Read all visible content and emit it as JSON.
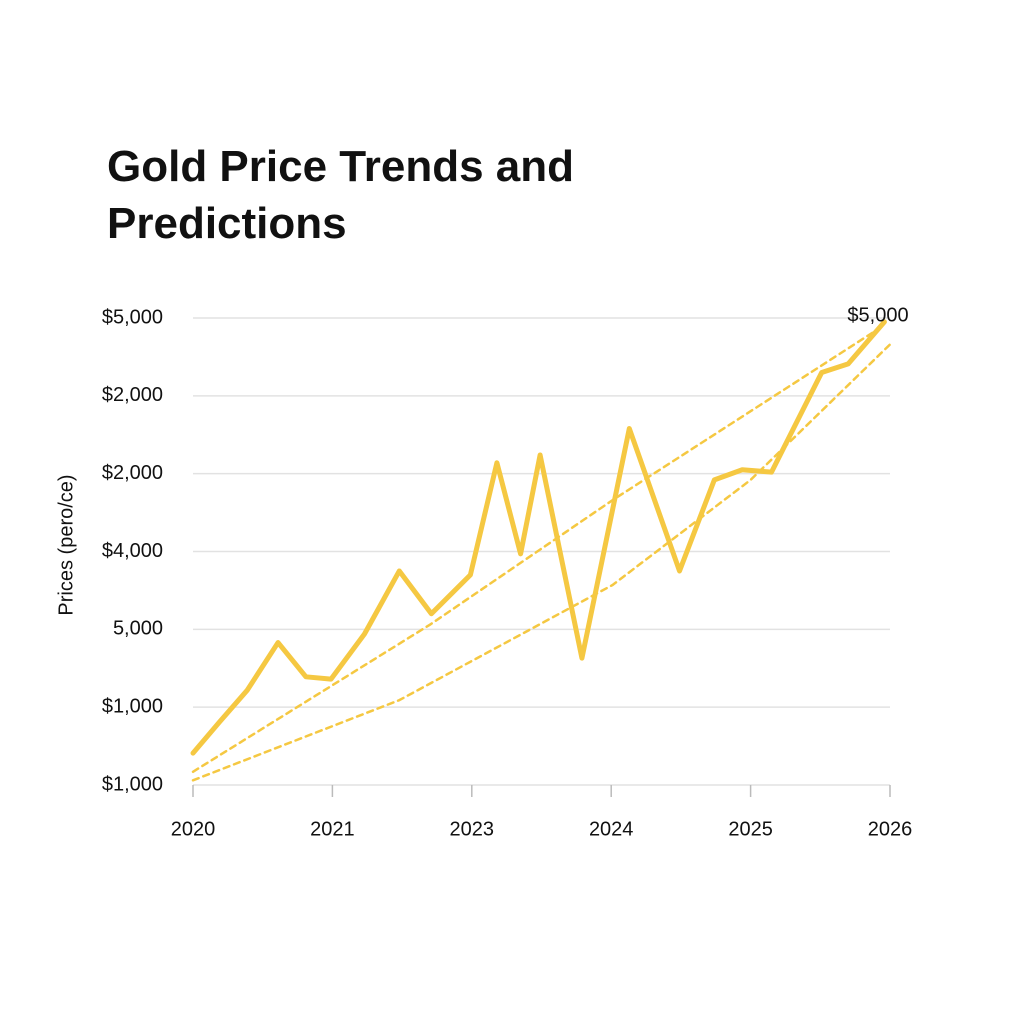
{
  "chart_data": {
    "type": "line",
    "title": "Gold Price Trends and Predictions",
    "y_label": "Prices (pero/ce)",
    "annotation": "$5,000",
    "x_categories": [
      "2020",
      "2021",
      "2023",
      "2024",
      "2025",
      "2026"
    ],
    "y_categories": [
      "$1,000",
      "$1,000",
      "5,000",
      "$4,000",
      "$2,000",
      "$2,000",
      "$5,000"
    ],
    "xlim": [
      0,
      5
    ],
    "ylim": [
      0,
      6
    ],
    "grid": true,
    "series": [
      {
        "color": "#f5c842",
        "style": "solid",
        "x": [
          0,
          0.19,
          0.39,
          0.61,
          0.81,
          0.99,
          1.23,
          1.48,
          1.71,
          1.99,
          2.18,
          2.35,
          2.49,
          2.79,
          3.13,
          3.49,
          3.74,
          3.94,
          4.15,
          4.51,
          4.7,
          4.96
        ],
        "values": [
          0.41,
          0.81,
          1.22,
          1.83,
          1.39,
          1.36,
          1.94,
          2.75,
          2.2,
          2.7,
          4.14,
          2.97,
          4.24,
          1.63,
          4.58,
          2.75,
          3.92,
          4.05,
          4.02,
          5.3,
          5.41,
          5.95
        ]
      },
      {
        "color": "#f5c842",
        "style": "dashed",
        "x": [
          0,
          1.7,
          3.01,
          4.96
        ],
        "values": [
          0.17,
          2.06,
          3.66,
          5.91
        ]
      },
      {
        "color": "#f5c842",
        "style": "dashed",
        "x": [
          0,
          1.48,
          3.01,
          4,
          5
        ],
        "values": [
          0.06,
          1.09,
          2.57,
          3.92,
          5.66
        ]
      }
    ]
  }
}
